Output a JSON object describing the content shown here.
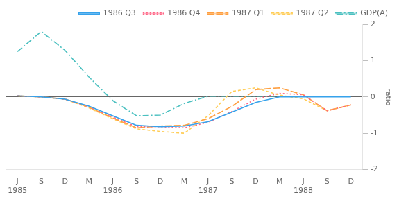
{
  "chart_data": {
    "type": "line",
    "y_label": "ratio",
    "categories": [
      "J",
      "S",
      "D",
      "M",
      "J",
      "S",
      "D",
      "M",
      "J",
      "S",
      "D",
      "M",
      "J",
      "S",
      "D"
    ],
    "annotations": [
      {
        "text": "1985",
        "x": 0
      },
      {
        "text": "1986",
        "x": 4
      },
      {
        "text": "1987",
        "x": 8
      },
      {
        "text": "1988",
        "x": 12
      }
    ],
    "series": [
      {
        "name": "1986 Q3",
        "line_style": "solid",
        "values": [
          0.03,
          0.0,
          -0.06,
          -0.25,
          -0.52,
          -0.78,
          -0.82,
          -0.8,
          -0.68,
          -0.42,
          -0.15,
          0.0,
          0.0,
          0.0,
          0.0
        ]
      },
      {
        "name": "1986 Q4",
        "line_style": "dotted",
        "values": [
          0.03,
          0.0,
          -0.06,
          -0.27,
          -0.55,
          -0.82,
          -0.82,
          -0.85,
          -0.7,
          -0.4,
          -0.06,
          0.1,
          0.06,
          -0.38,
          -0.22
        ]
      },
      {
        "name": "1987 Q1",
        "line_style": "long_dash",
        "values": [
          0.03,
          0.0,
          -0.06,
          -0.28,
          -0.58,
          -0.85,
          -0.8,
          -0.78,
          -0.6,
          -0.26,
          0.2,
          0.25,
          0.06,
          -0.38,
          -0.22
        ]
      },
      {
        "name": "1987 Q2",
        "line_style": "short_dash",
        "values": [
          0.03,
          0.0,
          -0.06,
          -0.3,
          -0.6,
          -0.88,
          -0.95,
          -1.0,
          -0.52,
          0.15,
          0.25,
          0.05,
          -0.05,
          -0.38,
          -0.22
        ]
      },
      {
        "name": "GDP(A)",
        "line_style": "dash_dot",
        "values": [
          1.25,
          1.8,
          1.28,
          0.55,
          -0.1,
          -0.52,
          -0.5,
          -0.18,
          0.02,
          0.02,
          0.02,
          0.02,
          0.02,
          0.02,
          0.02
        ]
      }
    ],
    "ylim": [
      -2,
      2
    ],
    "yticks": [
      -2,
      -1,
      0,
      1,
      2
    ],
    "hlines": [
      0
    ],
    "grid": false,
    "legend": "upper right"
  }
}
